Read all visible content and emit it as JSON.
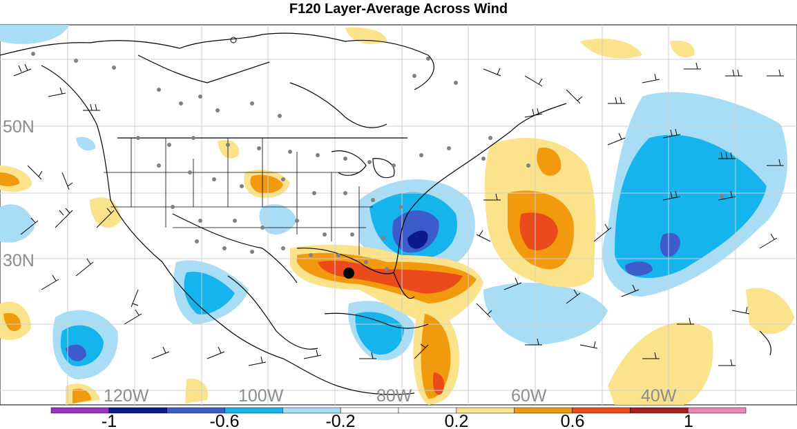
{
  "title": "F120 Layer-Average Across Wind",
  "latitude_labels": [
    "50N",
    "30N"
  ],
  "longitude_labels": [
    "120W",
    "100W",
    "80W",
    "60W",
    "40W"
  ],
  "colorbar": {
    "tick_labels": [
      "-1",
      "-0.6",
      "-0.2",
      "0.2",
      "0.6",
      "1"
    ],
    "colors": [
      "#9b2fc6",
      "#0b1a8c",
      "#3d5ccc",
      "#16b4ec",
      "#a9dcf5",
      "#ffffff",
      "#ffffff",
      "#fbe38c",
      "#f29a0e",
      "#ea4a1c",
      "#a8201c",
      "#ee86b6"
    ]
  },
  "legend": {}
}
